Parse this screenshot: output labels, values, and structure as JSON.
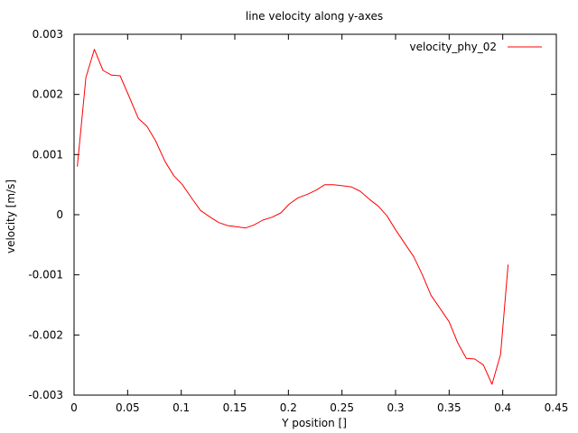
{
  "chart_data": {
    "type": "line",
    "title": "line velocity along y-axes",
    "xlabel": "Y position []",
    "ylabel": "velocity [m/s]",
    "xlim": [
      0,
      0.45
    ],
    "ylim": [
      -0.003,
      0.003
    ],
    "xticks": [
      0,
      0.05,
      0.1,
      0.15,
      0.2,
      0.25,
      0.3,
      0.35,
      0.4,
      0.45
    ],
    "xtick_labels": [
      "0",
      "0.05",
      "0.1",
      "0.15",
      "0.2",
      "0.25",
      "0.3",
      "0.35",
      "0.4",
      "0.45"
    ],
    "yticks": [
      -0.003,
      -0.002,
      -0.001,
      0,
      0.001,
      0.002,
      0.003
    ],
    "ytick_labels": [
      "-0.003",
      "-0.002",
      "-0.001",
      "0",
      "0.001",
      "0.002",
      "0.003"
    ],
    "grid": false,
    "legend_position": "top-right",
    "series": [
      {
        "name": "velocity_phy_02",
        "color": "#ff0000",
        "x": [
          0.003,
          0.011,
          0.019,
          0.027,
          0.035,
          0.043,
          0.051,
          0.06,
          0.068,
          0.076,
          0.085,
          0.093,
          0.101,
          0.11,
          0.118,
          0.127,
          0.135,
          0.143,
          0.151,
          0.16,
          0.168,
          0.176,
          0.185,
          0.193,
          0.201,
          0.209,
          0.218,
          0.226,
          0.234,
          0.242,
          0.251,
          0.259,
          0.267,
          0.276,
          0.284,
          0.292,
          0.3,
          0.309,
          0.317,
          0.325,
          0.333,
          0.342,
          0.35,
          0.358,
          0.366,
          0.374,
          0.382,
          0.39,
          0.398,
          0.405
        ],
        "y": [
          0.0008,
          0.00228,
          0.00275,
          0.0024,
          0.00232,
          0.00231,
          0.00198,
          0.0016,
          0.00147,
          0.00123,
          0.00088,
          0.00065,
          0.0005,
          0.00027,
          7e-05,
          -4e-05,
          -0.00013,
          -0.00018,
          -0.0002,
          -0.00022,
          -0.00017,
          -9e-05,
          -4e-05,
          3e-05,
          0.00018,
          0.00028,
          0.00034,
          0.00041,
          0.0005,
          0.0005,
          0.00048,
          0.00046,
          0.00039,
          0.00025,
          0.00014,
          -2e-05,
          -0.00025,
          -0.00049,
          -0.0007,
          -0.001,
          -0.00134,
          -0.00157,
          -0.00178,
          -0.00213,
          -0.00239,
          -0.0024,
          -0.0025,
          -0.00282,
          -0.00232,
          -0.00083
        ]
      }
    ]
  }
}
